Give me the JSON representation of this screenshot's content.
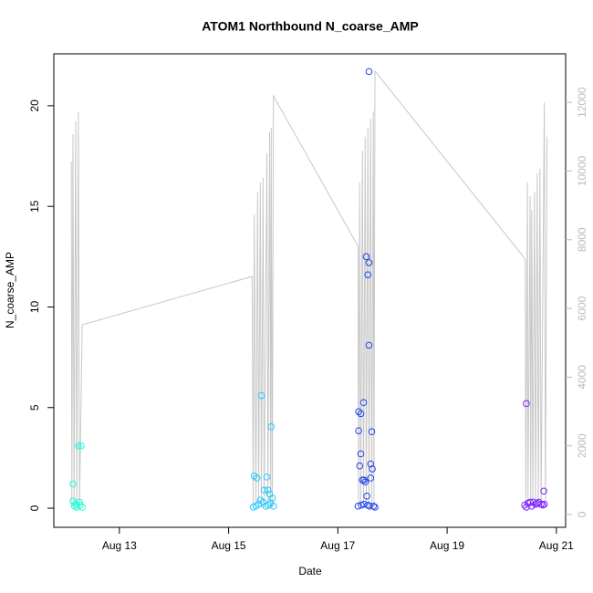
{
  "chart_data": {
    "type": "scatter",
    "title": "ATOM1 Northbound N_coarse_AMP",
    "xlabel": "Date",
    "ylabel": "N_coarse_AMP",
    "xlim": [
      11.8,
      21.17
    ],
    "xticks": [
      {
        "value": 13,
        "label": "Aug 13"
      },
      {
        "value": 15,
        "label": "Aug 15"
      },
      {
        "value": 17,
        "label": "Aug 17"
      },
      {
        "value": 19,
        "label": "Aug 19"
      },
      {
        "value": 21,
        "label": "Aug 21"
      }
    ],
    "ylim": [
      -0.95,
      22.58
    ],
    "yticks": [
      0,
      5,
      10,
      15,
      20
    ],
    "y2lim": [
      -372,
      13413
    ],
    "y2ticks": [
      0,
      2000,
      4000,
      6000,
      8000,
      10000,
      12000
    ],
    "series": [
      {
        "color": "#1affd5",
        "x": [
          12.15,
          12.15,
          12.18,
          12.22,
          12.25,
          12.3,
          12.27,
          12.32,
          12.2,
          12.28
        ],
        "values": [
          1.2,
          0.35,
          0.1,
          0.05,
          3.1,
          3.1,
          0.3,
          0.05,
          0.2,
          0.15
        ]
      },
      {
        "color": "#22ccff",
        "x": [
          15.47,
          15.52,
          15.6,
          15.65,
          15.7,
          15.72,
          15.78,
          15.75,
          15.8,
          15.45,
          15.5,
          15.55,
          15.58,
          15.63,
          15.68,
          15.73,
          15.77,
          15.82
        ],
        "values": [
          1.6,
          1.5,
          5.6,
          0.9,
          1.55,
          0.9,
          4.05,
          0.7,
          0.5,
          0.05,
          0.1,
          0.2,
          0.4,
          0.3,
          0.1,
          0.15,
          0.25,
          0.1
        ]
      },
      {
        "color": "#2244ee",
        "x": [
          17.57,
          17.52,
          17.57,
          17.55,
          17.57,
          17.38,
          17.42,
          17.47,
          17.38,
          17.62,
          17.42,
          17.6,
          17.4,
          17.63,
          17.6,
          17.45,
          17.48,
          17.5,
          17.53,
          17.37,
          17.43,
          17.48,
          17.55,
          17.58,
          17.65,
          17.68
        ],
        "values": [
          21.7,
          12.5,
          12.2,
          11.6,
          8.1,
          4.8,
          4.7,
          5.25,
          3.85,
          3.8,
          2.7,
          2.2,
          2.1,
          1.95,
          1.5,
          1.4,
          1.4,
          1.3,
          0.6,
          0.1,
          0.15,
          0.2,
          0.15,
          0.1,
          0.1,
          0.05
        ]
      },
      {
        "color": "#7a22ff",
        "x": [
          20.45,
          20.77,
          20.42,
          20.45,
          20.48,
          20.52,
          20.55,
          20.58,
          20.62,
          20.65,
          20.68,
          20.72,
          20.75,
          20.78
        ],
        "values": [
          5.2,
          0.85,
          0.15,
          0.05,
          0.25,
          0.3,
          0.1,
          0.3,
          0.2,
          0.25,
          0.3,
          0.2,
          0.15,
          0.2
        ]
      },
      {
        "type": "line",
        "axis": "y2",
        "color": "#c8c8c8",
        "x": [
          12.12,
          12.13,
          12.15,
          12.17,
          12.2,
          12.22,
          12.25,
          12.27,
          12.32,
          15.43,
          15.45,
          15.47,
          15.5,
          15.53,
          15.55,
          15.58,
          15.6,
          15.63,
          15.65,
          15.7,
          15.72,
          15.75,
          15.77,
          15.78,
          15.8,
          15.82,
          17.37,
          17.38,
          17.4,
          17.42,
          17.45,
          17.47,
          17.5,
          17.52,
          17.55,
          17.57,
          17.6,
          17.62,
          17.65,
          17.66,
          17.68,
          20.43,
          20.44,
          20.47,
          20.48,
          20.52,
          20.53,
          20.55,
          20.57,
          20.6,
          20.62,
          20.65,
          20.67,
          20.7,
          20.72,
          20.78,
          20.8,
          20.83
        ],
        "values": [
          10280,
          200,
          11075,
          200,
          11450,
          200,
          11710,
          200,
          5525,
          6930,
          200,
          8740,
          200,
          9400,
          200,
          9670,
          200,
          9800,
          200,
          10520,
          200,
          11130,
          200,
          11260,
          200,
          12190,
          7810,
          200,
          9670,
          200,
          10600,
          200,
          11000,
          200,
          11260,
          200,
          11530,
          200,
          11740,
          200,
          12910,
          7440,
          200,
          9670,
          200,
          9270,
          200,
          8870,
          200,
          9400,
          200,
          9930,
          200,
          10070,
          200,
          12000,
          200,
          11000
        ]
      }
    ]
  }
}
